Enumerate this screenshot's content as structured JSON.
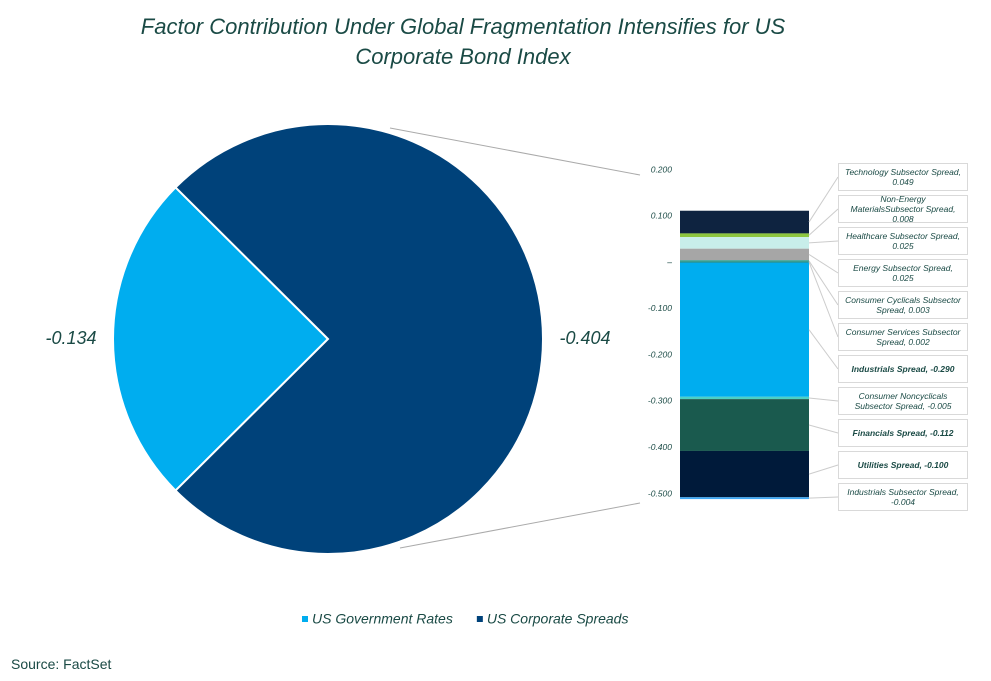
{
  "chart_data": [
    {
      "type": "pie",
      "title": "Factor Contribution Under Global Fragmentation Intensifies for US Corporate Bond Index",
      "categories": [
        "US Government Rates",
        "US Corporate Spreads"
      ],
      "values": [
        -0.134,
        -0.404
      ],
      "colors": [
        "#00adef",
        "#00427a"
      ]
    },
    {
      "type": "stacked-bar",
      "ylim": [
        -0.5,
        0.2
      ],
      "yticks": [
        {
          "value": 0.2,
          "label": "0.200"
        },
        {
          "value": 0.1,
          "label": "0.100"
        },
        {
          "value": 0,
          "label": "–"
        },
        {
          "value": -0.1,
          "label": "-0.100"
        },
        {
          "value": -0.2,
          "label": "-0.200"
        },
        {
          "value": -0.3,
          "label": "-0.300"
        },
        {
          "value": -0.4,
          "label": "-0.400"
        },
        {
          "value": -0.5,
          "label": "-0.500"
        }
      ],
      "segments": [
        {
          "label": "Technology Subsector Spread, 0.049",
          "value": 0.049,
          "color": "#0e2340",
          "bold": false
        },
        {
          "label": "Non-Energy MaterialsSubsector Spread, 0.008",
          "value": 0.008,
          "color": "#8dc63f",
          "bold": false
        },
        {
          "label": "Healthcare Subsector Spread, 0.025",
          "value": 0.025,
          "color": "#c8eeea",
          "bold": false
        },
        {
          "label": "Energy Subsector Spread, 0.025",
          "value": 0.025,
          "color": "#a6a6a6",
          "bold": false
        },
        {
          "label": "Consumer Cyclicals Subsector Spread, 0.003",
          "value": 0.003,
          "color": "#2a9d8f",
          "bold": false
        },
        {
          "label": "Consumer Services Subsector Spread, 0.002",
          "value": 0.002,
          "color": "#1a7f6e",
          "bold": false
        },
        {
          "label": "Industrials Spread, -0.290",
          "value": -0.29,
          "color": "#00adef",
          "bold": true
        },
        {
          "label": "Consumer Noncyclicals Subsector Spread, -0.005",
          "value": -0.005,
          "color": "#4dd0c4",
          "bold": false
        },
        {
          "label": "Financials Spread,  -0.112",
          "value": -0.112,
          "color": "#1a5a4e",
          "bold": true
        },
        {
          "label": "Utilities Spread, -0.100",
          "value": -0.1,
          "color": "#001a3a",
          "bold": true
        },
        {
          "label": "Industrials Subsector Spread, -0.004",
          "value": -0.004,
          "color": "#3fa9f5",
          "bold": false
        }
      ]
    }
  ],
  "source": "Source: FactSet"
}
